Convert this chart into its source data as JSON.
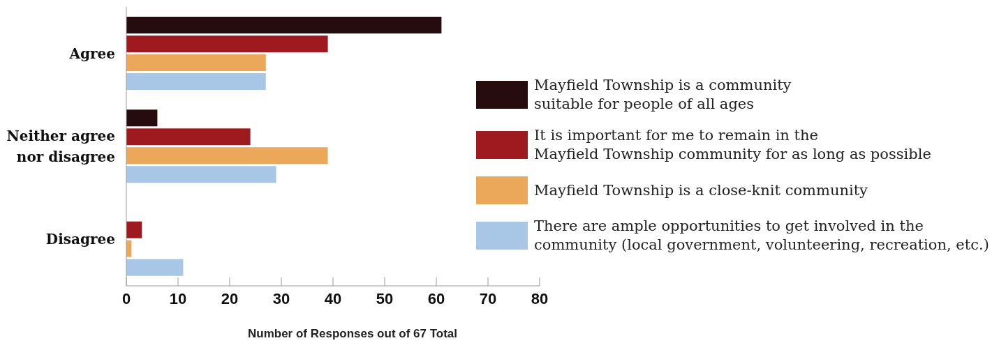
{
  "chart_data": {
    "type": "bar",
    "orientation": "horizontal",
    "xlabel": "Number of Responses out of 67 Total",
    "categories": [
      "Agree",
      "Neither agree nor disagree",
      "Disagree"
    ],
    "series": [
      {
        "name": "Mayfield Township is a community\nsuitable for people of all ages",
        "color": "#260b0f",
        "values": [
          61,
          6,
          0
        ]
      },
      {
        "name": "It is important for me to remain in the\nMayfield Township community for as long as possible",
        "color": "#9e1a1e",
        "values": [
          39,
          24,
          3
        ]
      },
      {
        "name": "Mayfield Township is a close-knit community",
        "color": "#eba85b",
        "values": [
          27,
          39,
          1
        ]
      },
      {
        "name": "There are ample opportunities to get involved in the\ncommunity (local government, volunteering, recreation, etc.)",
        "color": "#a8c6e6",
        "values": [
          27,
          29,
          11
        ]
      }
    ],
    "xlim": [
      0,
      80
    ],
    "xticks": [
      0,
      10,
      20,
      30,
      40,
      50,
      60,
      70,
      80
    ],
    "legend": "right"
  }
}
